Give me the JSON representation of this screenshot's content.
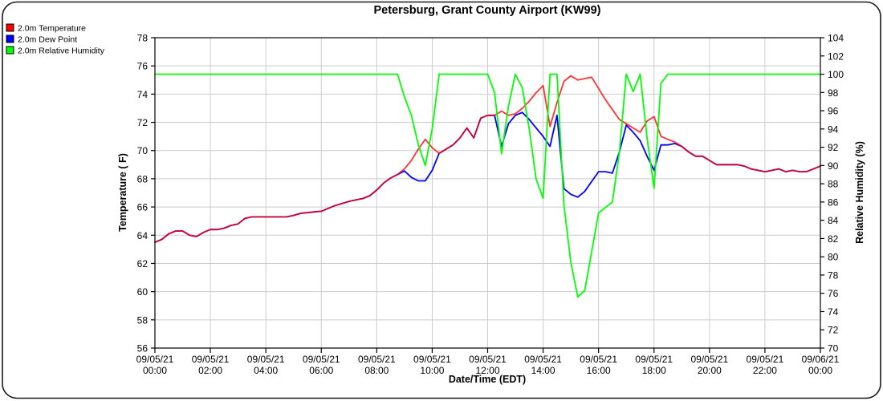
{
  "chart_data": {
    "type": "line",
    "title": "Petersburg, Grant County Airport (KW99)",
    "xlabel": "Date/Time (EDT)",
    "ylabel_left": "Temperature ( F)",
    "ylabel_right": "Relative Humidity (%)",
    "x_unit": "hours since 09/05/21 00:00",
    "xlim_hours": [
      0,
      24
    ],
    "ylim_left": [
      56,
      78
    ],
    "ytick_step_left": 2,
    "ylim_right": [
      70,
      104
    ],
    "ytick_step_right": 2,
    "grid": true,
    "legend_position": "top-left",
    "grid_color": "#cccccc",
    "x_ticks": [
      {
        "hour": 0,
        "date": "09/05/21",
        "time": "00:00"
      },
      {
        "hour": 2,
        "date": "09/05/21",
        "time": "02:00"
      },
      {
        "hour": 4,
        "date": "09/05/21",
        "time": "04:00"
      },
      {
        "hour": 6,
        "date": "09/05/21",
        "time": "06:00"
      },
      {
        "hour": 8,
        "date": "09/05/21",
        "time": "08:00"
      },
      {
        "hour": 10,
        "date": "09/05/21",
        "time": "10:00"
      },
      {
        "hour": 12,
        "date": "09/05/21",
        "time": "12:00"
      },
      {
        "hour": 14,
        "date": "09/05/21",
        "time": "14:00"
      },
      {
        "hour": 16,
        "date": "09/05/21",
        "time": "16:00"
      },
      {
        "hour": 18,
        "date": "09/05/21",
        "time": "18:00"
      },
      {
        "hour": 20,
        "date": "09/05/21",
        "time": "20:00"
      },
      {
        "hour": 22,
        "date": "09/05/21",
        "time": "22:00"
      },
      {
        "hour": 24,
        "date": "09/06/21",
        "time": "00:00"
      }
    ],
    "series": [
      {
        "name": "2.0m Temperature",
        "axis": "left",
        "color": "#ff0000",
        "opacity": 0.8,
        "z": 2,
        "points": [
          [
            0,
            63.5
          ],
          [
            0.25,
            63.7
          ],
          [
            0.5,
            64.1
          ],
          [
            0.75,
            64.3
          ],
          [
            1,
            64.3
          ],
          [
            1.25,
            64
          ],
          [
            1.5,
            63.9
          ],
          [
            1.75,
            64.2
          ],
          [
            2,
            64.4
          ],
          [
            2.25,
            64.4
          ],
          [
            2.5,
            64.5
          ],
          [
            2.75,
            64.7
          ],
          [
            3,
            64.8
          ],
          [
            3.25,
            65.2
          ],
          [
            3.5,
            65.3
          ],
          [
            3.75,
            65.3
          ],
          [
            4,
            65.3
          ],
          [
            4.25,
            65.3
          ],
          [
            4.5,
            65.3
          ],
          [
            4.75,
            65.3
          ],
          [
            5,
            65.4
          ],
          [
            5.25,
            65.55
          ],
          [
            5.5,
            65.6
          ],
          [
            5.75,
            65.65
          ],
          [
            6,
            65.7
          ],
          [
            6.25,
            65.9
          ],
          [
            6.5,
            66.1
          ],
          [
            6.75,
            66.25
          ],
          [
            7,
            66.4
          ],
          [
            7.25,
            66.5
          ],
          [
            7.5,
            66.6
          ],
          [
            7.75,
            66.8
          ],
          [
            8,
            67.2
          ],
          [
            8.25,
            67.7
          ],
          [
            8.5,
            68.05
          ],
          [
            8.75,
            68.3
          ],
          [
            9,
            68.7
          ],
          [
            9.25,
            69.3
          ],
          [
            9.5,
            70.1
          ],
          [
            9.75,
            70.8
          ],
          [
            10,
            70.2
          ],
          [
            10.25,
            69.8
          ],
          [
            10.5,
            70.1
          ],
          [
            10.75,
            70.4
          ],
          [
            11,
            70.9
          ],
          [
            11.25,
            71.6
          ],
          [
            11.5,
            70.9
          ],
          [
            11.75,
            72.3
          ],
          [
            12,
            72.5
          ],
          [
            12.25,
            72.5
          ],
          [
            12.5,
            72.8
          ],
          [
            12.75,
            72.5
          ],
          [
            13,
            72.6
          ],
          [
            13.25,
            73
          ],
          [
            13.5,
            73.5
          ],
          [
            13.75,
            74.1
          ],
          [
            14,
            74.6
          ],
          [
            14.25,
            71.7
          ],
          [
            14.5,
            73.4
          ],
          [
            14.75,
            74.9
          ],
          [
            15,
            75.3
          ],
          [
            15.25,
            75
          ],
          [
            15.5,
            75.1
          ],
          [
            15.75,
            75.2
          ],
          [
            16,
            74.4
          ],
          [
            16.25,
            73.6
          ],
          [
            16.5,
            72.9
          ],
          [
            16.75,
            72.2
          ],
          [
            17,
            71.9
          ],
          [
            17.25,
            71.6
          ],
          [
            17.5,
            71.3
          ],
          [
            17.75,
            72.1
          ],
          [
            18,
            72.4
          ],
          [
            18.25,
            71
          ],
          [
            18.5,
            70.8
          ],
          [
            18.75,
            70.6
          ],
          [
            19,
            70.3
          ],
          [
            19.25,
            69.9
          ],
          [
            19.5,
            69.6
          ],
          [
            19.75,
            69.6
          ],
          [
            20,
            69.3
          ],
          [
            20.25,
            69
          ],
          [
            20.5,
            69
          ],
          [
            20.75,
            69
          ],
          [
            21,
            69
          ],
          [
            21.25,
            68.9
          ],
          [
            21.5,
            68.7
          ],
          [
            21.75,
            68.6
          ],
          [
            22,
            68.5
          ],
          [
            22.25,
            68.6
          ],
          [
            22.5,
            68.7
          ],
          [
            22.75,
            68.5
          ],
          [
            23,
            68.6
          ],
          [
            23.25,
            68.5
          ],
          [
            23.5,
            68.5
          ],
          [
            23.75,
            68.7
          ],
          [
            24,
            68.9
          ]
        ]
      },
      {
        "name": "2.0m Dew Point",
        "axis": "left",
        "color": "#0000ff",
        "opacity": 1,
        "z": 1,
        "points": [
          [
            0,
            63.5
          ],
          [
            0.25,
            63.7
          ],
          [
            0.5,
            64.1
          ],
          [
            0.75,
            64.3
          ],
          [
            1,
            64.3
          ],
          [
            1.25,
            64
          ],
          [
            1.5,
            63.9
          ],
          [
            1.75,
            64.2
          ],
          [
            2,
            64.4
          ],
          [
            2.25,
            64.4
          ],
          [
            2.5,
            64.5
          ],
          [
            2.75,
            64.7
          ],
          [
            3,
            64.8
          ],
          [
            3.25,
            65.2
          ],
          [
            3.5,
            65.3
          ],
          [
            3.75,
            65.3
          ],
          [
            4,
            65.3
          ],
          [
            4.25,
            65.3
          ],
          [
            4.5,
            65.3
          ],
          [
            4.75,
            65.3
          ],
          [
            5,
            65.4
          ],
          [
            5.25,
            65.55
          ],
          [
            5.5,
            65.6
          ],
          [
            5.75,
            65.65
          ],
          [
            6,
            65.7
          ],
          [
            6.25,
            65.9
          ],
          [
            6.5,
            66.1
          ],
          [
            6.75,
            66.25
          ],
          [
            7,
            66.4
          ],
          [
            7.25,
            66.5
          ],
          [
            7.5,
            66.6
          ],
          [
            7.75,
            66.8
          ],
          [
            8,
            67.2
          ],
          [
            8.25,
            67.7
          ],
          [
            8.5,
            68.05
          ],
          [
            8.75,
            68.3
          ],
          [
            9,
            68.55
          ],
          [
            9.25,
            68.1
          ],
          [
            9.5,
            67.85
          ],
          [
            9.75,
            67.85
          ],
          [
            10,
            68.6
          ],
          [
            10.25,
            69.8
          ],
          [
            10.5,
            70.1
          ],
          [
            10.75,
            70.4
          ],
          [
            11,
            70.9
          ],
          [
            11.25,
            71.6
          ],
          [
            11.5,
            70.9
          ],
          [
            11.75,
            72.3
          ],
          [
            12,
            72.5
          ],
          [
            12.25,
            72.5
          ],
          [
            12.5,
            70.3
          ],
          [
            12.75,
            71.9
          ],
          [
            13,
            72.5
          ],
          [
            13.25,
            72.7
          ],
          [
            13.5,
            72.2
          ],
          [
            13.75,
            71.6
          ],
          [
            14,
            71
          ],
          [
            14.25,
            70.3
          ],
          [
            14.5,
            72.5
          ],
          [
            14.75,
            67.3
          ],
          [
            15,
            66.9
          ],
          [
            15.25,
            66.7
          ],
          [
            15.5,
            67.1
          ],
          [
            15.75,
            67.8
          ],
          [
            16,
            68.5
          ],
          [
            16.25,
            68.5
          ],
          [
            16.5,
            68.4
          ],
          [
            16.75,
            69.9
          ],
          [
            17,
            71.8
          ],
          [
            17.25,
            71.3
          ],
          [
            17.5,
            70.7
          ],
          [
            17.75,
            69.6
          ],
          [
            18,
            68.6
          ],
          [
            18.25,
            70.4
          ],
          [
            18.5,
            70.4
          ],
          [
            18.75,
            70.5
          ],
          [
            19,
            70.3
          ],
          [
            19.25,
            69.9
          ],
          [
            19.5,
            69.6
          ],
          [
            19.75,
            69.6
          ],
          [
            20,
            69.3
          ],
          [
            20.25,
            69
          ],
          [
            20.5,
            69
          ],
          [
            20.75,
            69
          ],
          [
            21,
            69
          ],
          [
            21.25,
            68.9
          ],
          [
            21.5,
            68.7
          ],
          [
            21.75,
            68.6
          ],
          [
            22,
            68.5
          ],
          [
            22.25,
            68.6
          ],
          [
            22.5,
            68.7
          ],
          [
            22.75,
            68.5
          ],
          [
            23,
            68.6
          ],
          [
            23.25,
            68.5
          ],
          [
            23.5,
            68.5
          ],
          [
            23.75,
            68.7
          ],
          [
            24,
            68.9
          ]
        ]
      },
      {
        "name": "2.0m Relative Humidity",
        "axis": "right",
        "color": "#00ff00",
        "opacity": 1,
        "z": 3,
        "points": [
          [
            0,
            100
          ],
          [
            0.25,
            100
          ],
          [
            0.5,
            100
          ],
          [
            0.75,
            100
          ],
          [
            1,
            100
          ],
          [
            1.25,
            100
          ],
          [
            1.5,
            100
          ],
          [
            1.75,
            100
          ],
          [
            2,
            100
          ],
          [
            2.25,
            100
          ],
          [
            2.5,
            100
          ],
          [
            2.75,
            100
          ],
          [
            3,
            100
          ],
          [
            3.25,
            100
          ],
          [
            3.5,
            100
          ],
          [
            3.75,
            100
          ],
          [
            4,
            100
          ],
          [
            4.25,
            100
          ],
          [
            4.5,
            100
          ],
          [
            4.75,
            100
          ],
          [
            5,
            100
          ],
          [
            5.25,
            100
          ],
          [
            5.5,
            100
          ],
          [
            5.75,
            100
          ],
          [
            6,
            100
          ],
          [
            6.25,
            100
          ],
          [
            6.5,
            100
          ],
          [
            6.75,
            100
          ],
          [
            7,
            100
          ],
          [
            7.25,
            100
          ],
          [
            7.5,
            100
          ],
          [
            7.75,
            100
          ],
          [
            8,
            100
          ],
          [
            8.25,
            100
          ],
          [
            8.5,
            100
          ],
          [
            8.75,
            100
          ],
          [
            9,
            97.5
          ],
          [
            9.25,
            95.5
          ],
          [
            9.5,
            92.3
          ],
          [
            9.75,
            90
          ],
          [
            10,
            94
          ],
          [
            10.25,
            100
          ],
          [
            10.5,
            100
          ],
          [
            10.75,
            100
          ],
          [
            11,
            100
          ],
          [
            11.25,
            100
          ],
          [
            11.5,
            100
          ],
          [
            11.75,
            100
          ],
          [
            12,
            100
          ],
          [
            12.25,
            98
          ],
          [
            12.5,
            91.3
          ],
          [
            12.75,
            96.5
          ],
          [
            13,
            100
          ],
          [
            13.25,
            98.5
          ],
          [
            13.5,
            94
          ],
          [
            13.75,
            88.5
          ],
          [
            14,
            86.4
          ],
          [
            14.25,
            100
          ],
          [
            14.5,
            100
          ],
          [
            14.75,
            85.7
          ],
          [
            15,
            79.4
          ],
          [
            15.25,
            75.6
          ],
          [
            15.5,
            76.3
          ],
          [
            15.75,
            80.5
          ],
          [
            16,
            84.8
          ],
          [
            16.25,
            85.4
          ],
          [
            16.5,
            86
          ],
          [
            16.75,
            91.4
          ],
          [
            17,
            100
          ],
          [
            17.25,
            98.1
          ],
          [
            17.5,
            100
          ],
          [
            17.75,
            93
          ],
          [
            18,
            87.5
          ],
          [
            18.25,
            99
          ],
          [
            18.5,
            100
          ],
          [
            18.75,
            100
          ],
          [
            19,
            100
          ],
          [
            19.25,
            100
          ],
          [
            19.5,
            100
          ],
          [
            19.75,
            100
          ],
          [
            20,
            100
          ],
          [
            20.25,
            100
          ],
          [
            20.5,
            100
          ],
          [
            20.75,
            100
          ],
          [
            21,
            100
          ],
          [
            21.25,
            100
          ],
          [
            21.5,
            100
          ],
          [
            21.75,
            100
          ],
          [
            22,
            100
          ],
          [
            22.25,
            100
          ],
          [
            22.5,
            100
          ],
          [
            22.75,
            100
          ],
          [
            23,
            100
          ],
          [
            23.25,
            100
          ],
          [
            23.5,
            100
          ],
          [
            23.75,
            100
          ],
          [
            24,
            100
          ]
        ]
      }
    ]
  }
}
